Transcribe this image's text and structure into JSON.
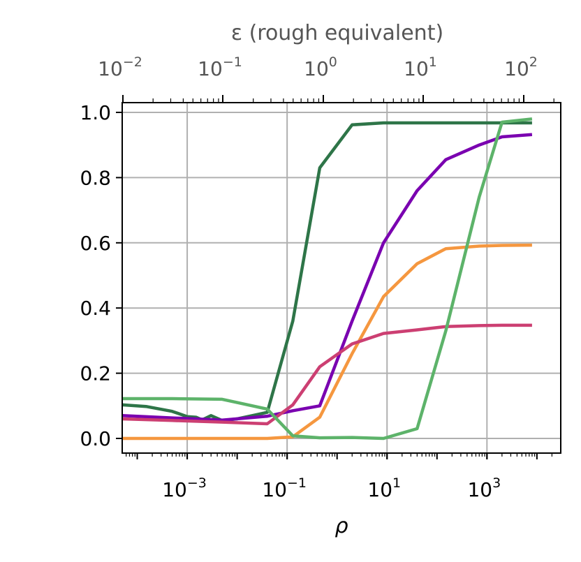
{
  "chart_data": {
    "type": "line",
    "xscale": "log",
    "xlim": [
      5e-05,
      30000
    ],
    "ylim": [
      -0.045,
      1.03
    ],
    "grid": true,
    "legend": "none",
    "xlabel": "ρ",
    "top_xlabel": "ε (rough equivalent)",
    "yticks": [
      "0.0",
      "0.2",
      "0.4",
      "0.6",
      "0.8",
      "1.0"
    ],
    "ytick_values": [
      0,
      0.2,
      0.4,
      0.6,
      0.8,
      1.0
    ],
    "xticks": [
      {
        "value": 0.001,
        "base": "10",
        "exp": "−3"
      },
      {
        "value": 0.1,
        "base": "10",
        "exp": "−1"
      },
      {
        "value": 10,
        "base": "10",
        "exp": "1"
      },
      {
        "value": 1000,
        "base": "10",
        "exp": "3"
      }
    ],
    "top_xticks": [
      {
        "base": "10",
        "exp": "−2"
      },
      {
        "base": "10",
        "exp": "−1"
      },
      {
        "base": "10",
        "exp": "0"
      },
      {
        "base": "10",
        "exp": "1"
      },
      {
        "base": "10",
        "exp": "2"
      }
    ],
    "series": [
      {
        "color": "#2e7548",
        "points": [
          [
            5e-05,
            0.103
          ],
          [
            0.00015,
            0.098
          ],
          [
            0.0005,
            0.083
          ],
          [
            0.001,
            0.067
          ],
          [
            0.0015,
            0.065
          ],
          [
            0.002,
            0.057
          ],
          [
            0.003,
            0.07
          ],
          [
            0.005,
            0.055
          ],
          [
            0.01,
            0.06
          ],
          [
            0.02,
            0.07
          ],
          [
            0.04,
            0.08
          ],
          [
            0.13,
            0.36
          ],
          [
            0.45,
            0.83
          ],
          [
            2.0,
            0.962
          ],
          [
            8.5,
            0.968
          ],
          [
            40,
            0.968
          ],
          [
            150,
            0.968
          ],
          [
            700,
            0.968
          ],
          [
            1500,
            0.968
          ],
          [
            8000,
            0.968
          ]
        ]
      },
      {
        "color": "#7a00b0",
        "points": [
          [
            5e-05,
            0.07
          ],
          [
            0.0005,
            0.063
          ],
          [
            0.005,
            0.056
          ],
          [
            0.04,
            0.068
          ],
          [
            0.13,
            0.085
          ],
          [
            0.45,
            0.1
          ],
          [
            2.0,
            0.36
          ],
          [
            8.5,
            0.6
          ],
          [
            40,
            0.76
          ],
          [
            150,
            0.855
          ],
          [
            700,
            0.9
          ],
          [
            2000,
            0.925
          ],
          [
            8000,
            0.932
          ]
        ]
      },
      {
        "color": "#f5973f",
        "points": [
          [
            5e-05,
            0.0
          ],
          [
            0.005,
            0.0
          ],
          [
            0.04,
            0.0
          ],
          [
            0.13,
            0.005
          ],
          [
            0.45,
            0.065
          ],
          [
            2.0,
            0.26
          ],
          [
            8.5,
            0.435
          ],
          [
            40,
            0.536
          ],
          [
            150,
            0.582
          ],
          [
            700,
            0.59
          ],
          [
            2000,
            0.592
          ],
          [
            8000,
            0.593
          ]
        ]
      },
      {
        "color": "#cc3f72",
        "points": [
          [
            5e-05,
            0.06
          ],
          [
            0.0005,
            0.055
          ],
          [
            0.005,
            0.05
          ],
          [
            0.04,
            0.045
          ],
          [
            0.13,
            0.103
          ],
          [
            0.45,
            0.22
          ],
          [
            2.0,
            0.29
          ],
          [
            8.5,
            0.322
          ],
          [
            40,
            0.333
          ],
          [
            150,
            0.343
          ],
          [
            700,
            0.346
          ],
          [
            2000,
            0.347
          ],
          [
            8000,
            0.347
          ]
        ]
      },
      {
        "color": "#5db36a",
        "points": [
          [
            5e-05,
            0.122
          ],
          [
            0.0005,
            0.122
          ],
          [
            0.005,
            0.12
          ],
          [
            0.01,
            0.11
          ],
          [
            0.04,
            0.09
          ],
          [
            0.13,
            0.008
          ],
          [
            0.45,
            0.002
          ],
          [
            2.0,
            0.003
          ],
          [
            8.5,
            0.0
          ],
          [
            40,
            0.03
          ],
          [
            150,
            0.33
          ],
          [
            700,
            0.74
          ],
          [
            2000,
            0.97
          ],
          [
            8000,
            0.98
          ]
        ]
      }
    ]
  }
}
